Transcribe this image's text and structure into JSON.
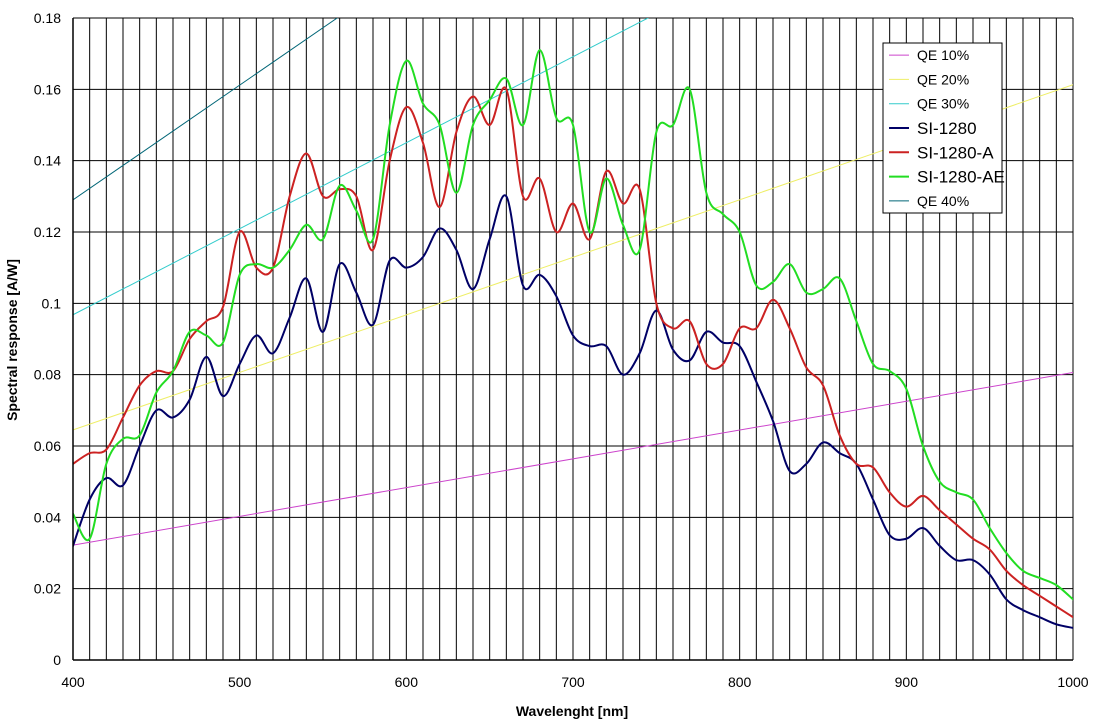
{
  "chart_data": {
    "type": "line",
    "xlabel": "Wavelenght [nm]",
    "ylabel": "Spectral response [A/W]",
    "xlim": [
      400,
      1000
    ],
    "ylim": [
      0,
      0.18
    ],
    "x_ticks": [
      "400",
      "500",
      "600",
      "700",
      "800",
      "900",
      "1000"
    ],
    "y_ticks": [
      "0",
      "0.02",
      "0.04",
      "0.06",
      "0.08",
      "0.1",
      "0.12",
      "0.14",
      "0.16",
      "0.18"
    ],
    "grid": {
      "vertical_step": 10,
      "horizontal_step": 0.02
    },
    "legend_position": "top-right",
    "series": [
      {
        "name": "QE 10%",
        "color": "#cc44cc",
        "width": 1,
        "bold": false,
        "x": [
          400,
          1000
        ],
        "y": [
          0.0322,
          0.0806
        ]
      },
      {
        "name": "QE 20%",
        "color": "#eeee66",
        "width": 1,
        "bold": false,
        "x": [
          400,
          1000
        ],
        "y": [
          0.0645,
          0.1613
        ]
      },
      {
        "name": "QE 30%",
        "color": "#33cccc",
        "width": 1,
        "bold": false,
        "x": [
          400,
          745
        ],
        "y": [
          0.0968,
          0.18
        ]
      },
      {
        "name": "SI-1280",
        "color": "#000066",
        "width": 2,
        "bold": true,
        "x": [
          400,
          410,
          420,
          430,
          440,
          450,
          460,
          470,
          480,
          490,
          500,
          510,
          520,
          530,
          540,
          550,
          560,
          570,
          580,
          590,
          600,
          610,
          620,
          630,
          640,
          650,
          660,
          670,
          680,
          690,
          700,
          710,
          720,
          730,
          740,
          750,
          760,
          770,
          780,
          790,
          800,
          810,
          820,
          830,
          840,
          850,
          860,
          870,
          880,
          890,
          900,
          910,
          920,
          930,
          940,
          950,
          960,
          970,
          980,
          990,
          1000
        ],
        "y": [
          0.032,
          0.045,
          0.051,
          0.049,
          0.06,
          0.07,
          0.068,
          0.073,
          0.085,
          0.074,
          0.083,
          0.091,
          0.086,
          0.096,
          0.107,
          0.092,
          0.111,
          0.103,
          0.094,
          0.112,
          0.11,
          0.113,
          0.121,
          0.115,
          0.104,
          0.118,
          0.13,
          0.105,
          0.108,
          0.102,
          0.091,
          0.088,
          0.088,
          0.08,
          0.086,
          0.098,
          0.087,
          0.084,
          0.092,
          0.089,
          0.088,
          0.078,
          0.067,
          0.053,
          0.055,
          0.061,
          0.058,
          0.055,
          0.045,
          0.035,
          0.034,
          0.037,
          0.032,
          0.028,
          0.028,
          0.024,
          0.017,
          0.014,
          0.012,
          0.01,
          0.009
        ]
      },
      {
        "name": "SI-1280-A",
        "color": "#cc2222",
        "width": 2,
        "bold": true,
        "x": [
          400,
          410,
          420,
          430,
          440,
          450,
          460,
          470,
          480,
          490,
          500,
          510,
          520,
          530,
          540,
          550,
          560,
          570,
          580,
          590,
          600,
          610,
          620,
          630,
          640,
          650,
          660,
          670,
          680,
          690,
          700,
          710,
          720,
          730,
          740,
          750,
          760,
          770,
          780,
          790,
          800,
          810,
          820,
          830,
          840,
          850,
          860,
          870,
          880,
          890,
          900,
          910,
          920,
          930,
          940,
          950,
          960,
          970,
          980,
          990,
          1000
        ],
        "y": [
          0.055,
          0.058,
          0.059,
          0.068,
          0.077,
          0.081,
          0.081,
          0.09,
          0.095,
          0.099,
          0.12,
          0.11,
          0.11,
          0.13,
          0.142,
          0.13,
          0.132,
          0.13,
          0.115,
          0.14,
          0.155,
          0.145,
          0.127,
          0.148,
          0.158,
          0.15,
          0.16,
          0.13,
          0.135,
          0.12,
          0.128,
          0.118,
          0.137,
          0.128,
          0.132,
          0.1,
          0.093,
          0.095,
          0.083,
          0.083,
          0.093,
          0.093,
          0.101,
          0.093,
          0.082,
          0.077,
          0.063,
          0.055,
          0.054,
          0.047,
          0.043,
          0.046,
          0.042,
          0.038,
          0.034,
          0.031,
          0.025,
          0.021,
          0.018,
          0.015,
          0.012
        ]
      },
      {
        "name": "SI-1280-AE",
        "color": "#22dd22",
        "width": 2,
        "bold": true,
        "x": [
          400,
          410,
          420,
          430,
          440,
          450,
          460,
          470,
          480,
          490,
          500,
          510,
          520,
          530,
          540,
          550,
          560,
          570,
          580,
          590,
          600,
          610,
          620,
          630,
          640,
          650,
          660,
          670,
          680,
          690,
          700,
          710,
          720,
          730,
          740,
          750,
          760,
          770,
          780,
          790,
          800,
          810,
          820,
          830,
          840,
          850,
          860,
          870,
          880,
          890,
          900,
          910,
          920,
          930,
          940,
          950,
          960,
          970,
          980,
          990,
          1000
        ],
        "y": [
          0.041,
          0.034,
          0.055,
          0.062,
          0.063,
          0.075,
          0.081,
          0.092,
          0.091,
          0.089,
          0.108,
          0.111,
          0.11,
          0.115,
          0.122,
          0.118,
          0.133,
          0.126,
          0.118,
          0.15,
          0.168,
          0.156,
          0.15,
          0.131,
          0.15,
          0.157,
          0.163,
          0.15,
          0.171,
          0.152,
          0.15,
          0.12,
          0.135,
          0.122,
          0.115,
          0.148,
          0.15,
          0.16,
          0.131,
          0.125,
          0.12,
          0.105,
          0.106,
          0.111,
          0.103,
          0.104,
          0.107,
          0.095,
          0.083,
          0.081,
          0.076,
          0.06,
          0.05,
          0.047,
          0.045,
          0.037,
          0.03,
          0.025,
          0.023,
          0.021,
          0.017
        ]
      },
      {
        "name": "QE 40%",
        "color": "#006677",
        "width": 1,
        "bold": false,
        "x": [
          400,
          558.5
        ],
        "y": [
          0.129,
          0.18
        ]
      }
    ]
  }
}
